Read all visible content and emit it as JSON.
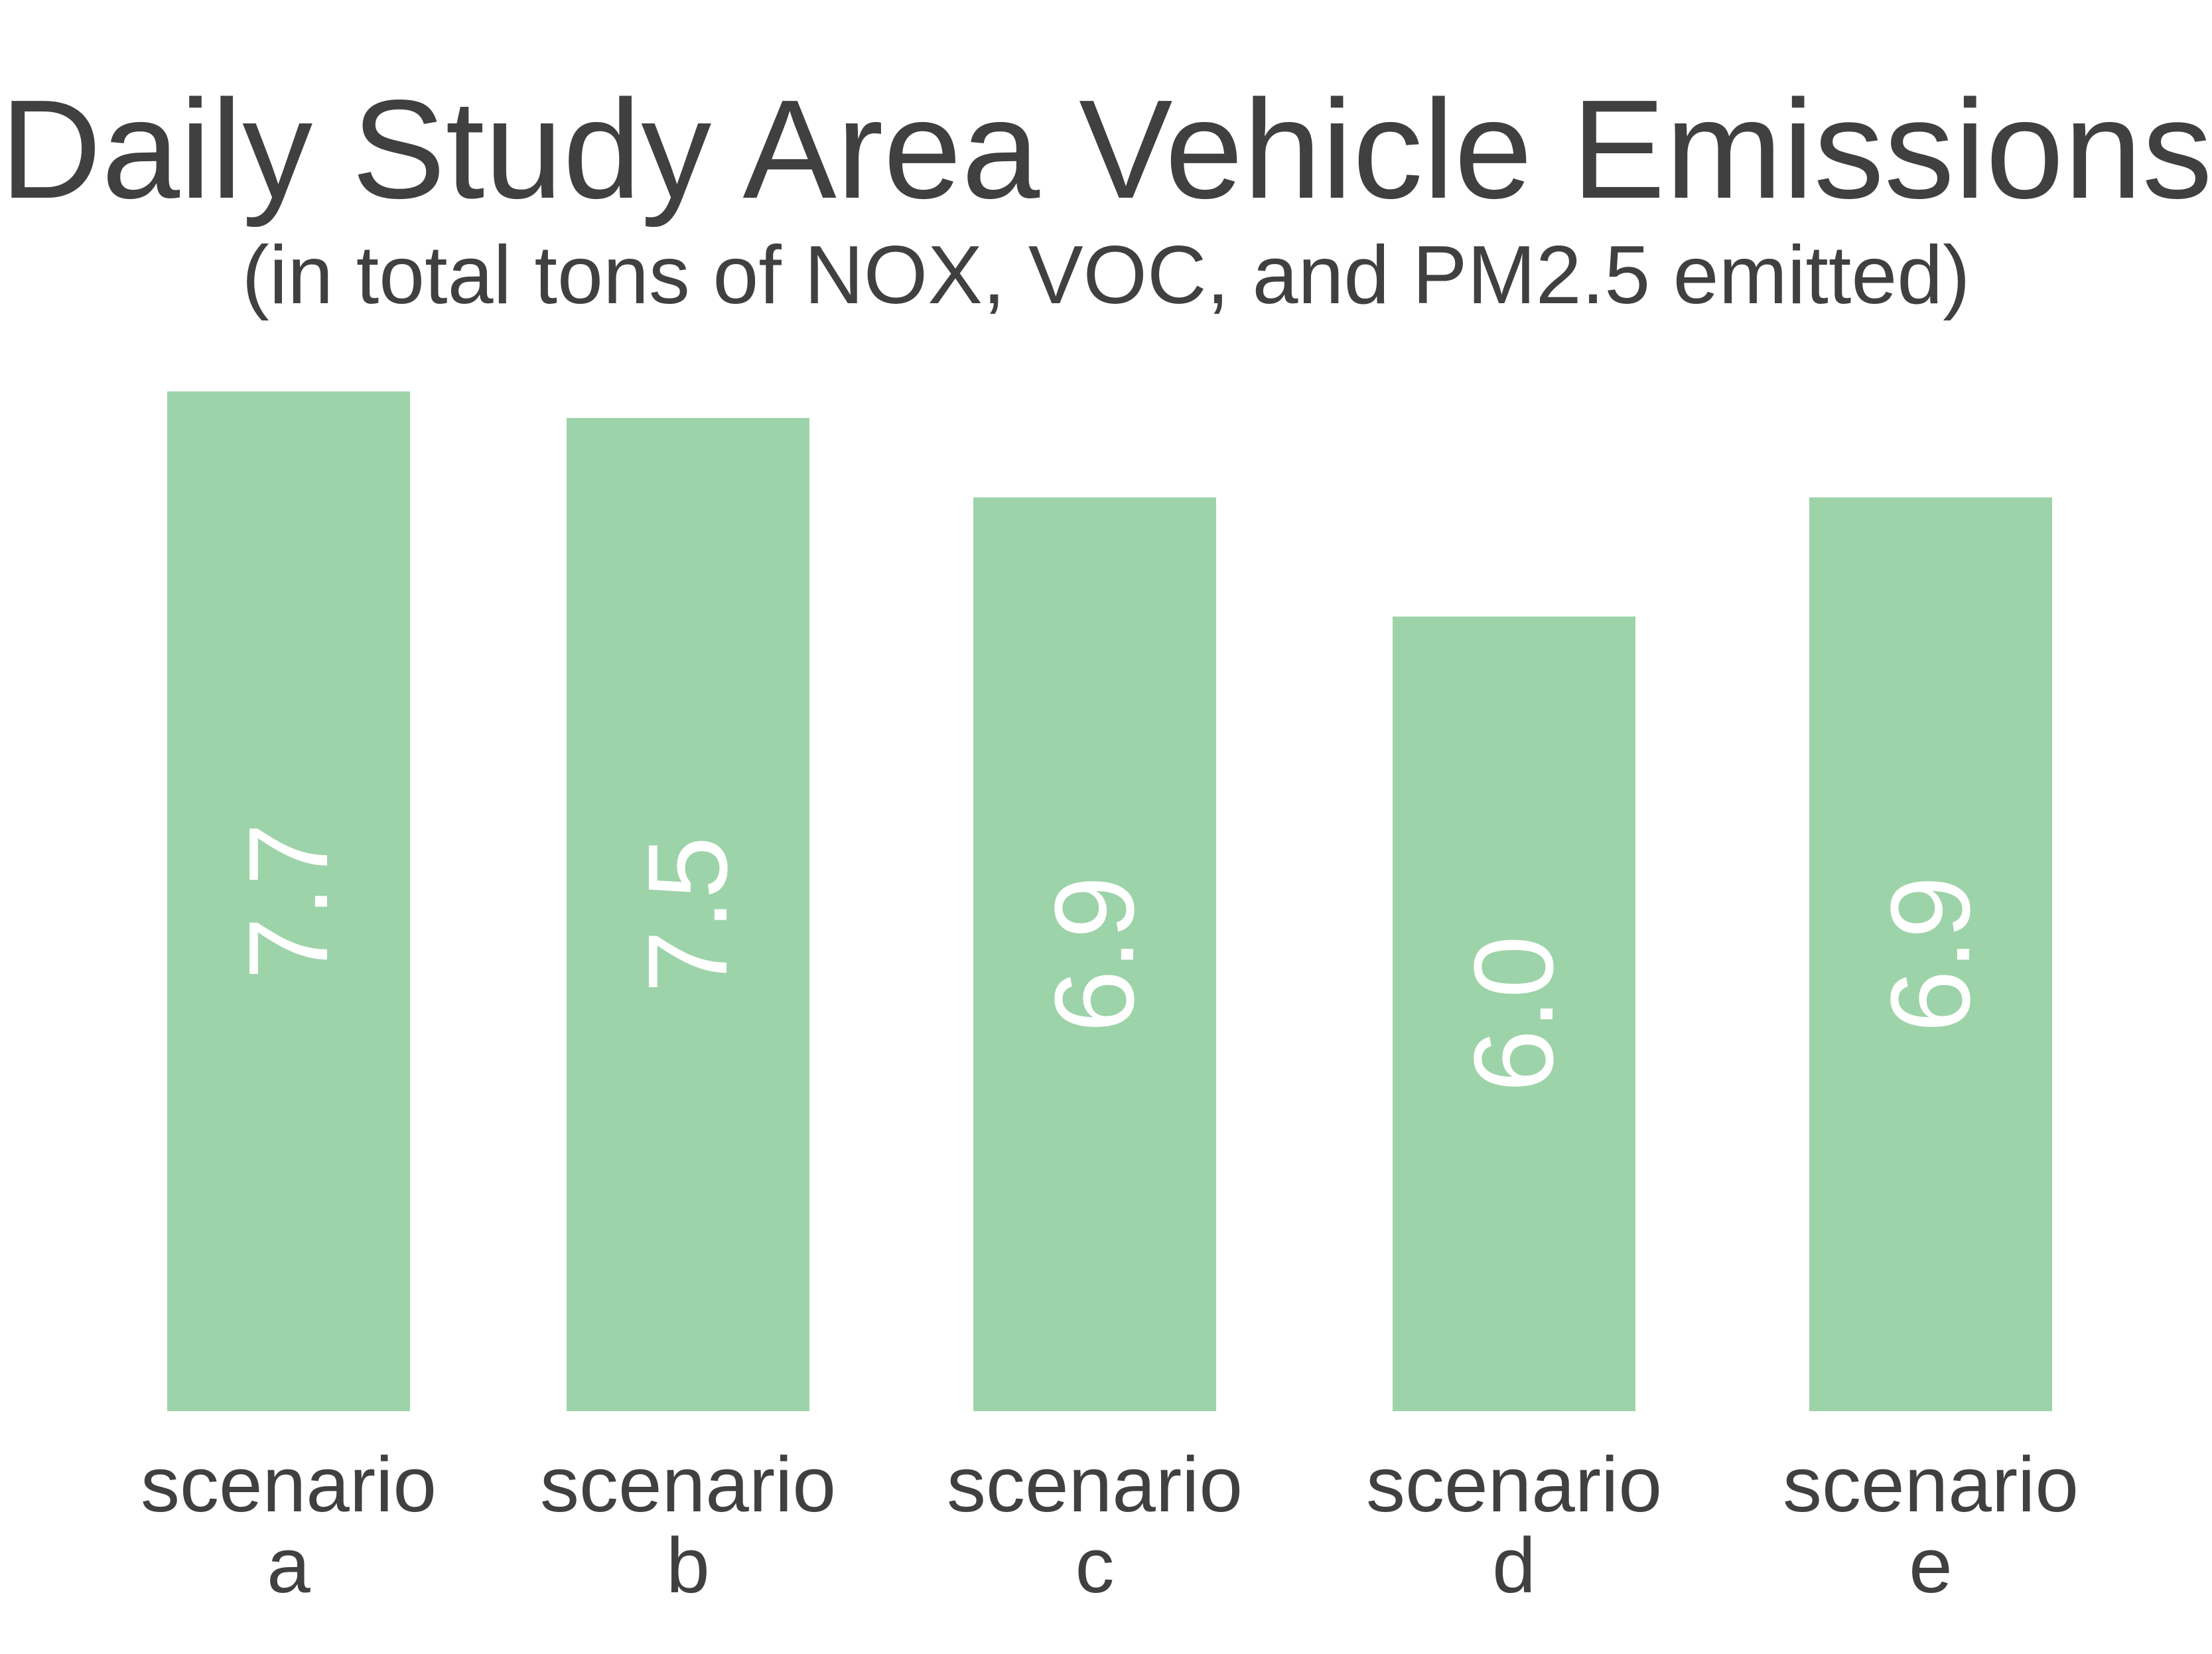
{
  "chart_data": {
    "type": "bar",
    "title": "Daily Study Area Vehicle Emissions",
    "subtitle": "(in total tons of NOX, VOC, and PM2.5 emitted)",
    "categories": [
      [
        "scenario",
        "a"
      ],
      [
        "scenario",
        "b"
      ],
      [
        "scenario",
        "c"
      ],
      [
        "scenario",
        "d"
      ],
      [
        "scenario",
        "e"
      ]
    ],
    "values": [
      7.7,
      7.5,
      6.9,
      6.0,
      6.9
    ],
    "value_labels": [
      "7.7",
      "7.5",
      "6.9",
      "6.0",
      "6.9"
    ],
    "ylim": [
      0,
      7.7
    ],
    "grid": false,
    "legend": "none",
    "bar_color": "#9dd3a8",
    "value_label_color": "#ffffff",
    "text_color": "#404040"
  }
}
